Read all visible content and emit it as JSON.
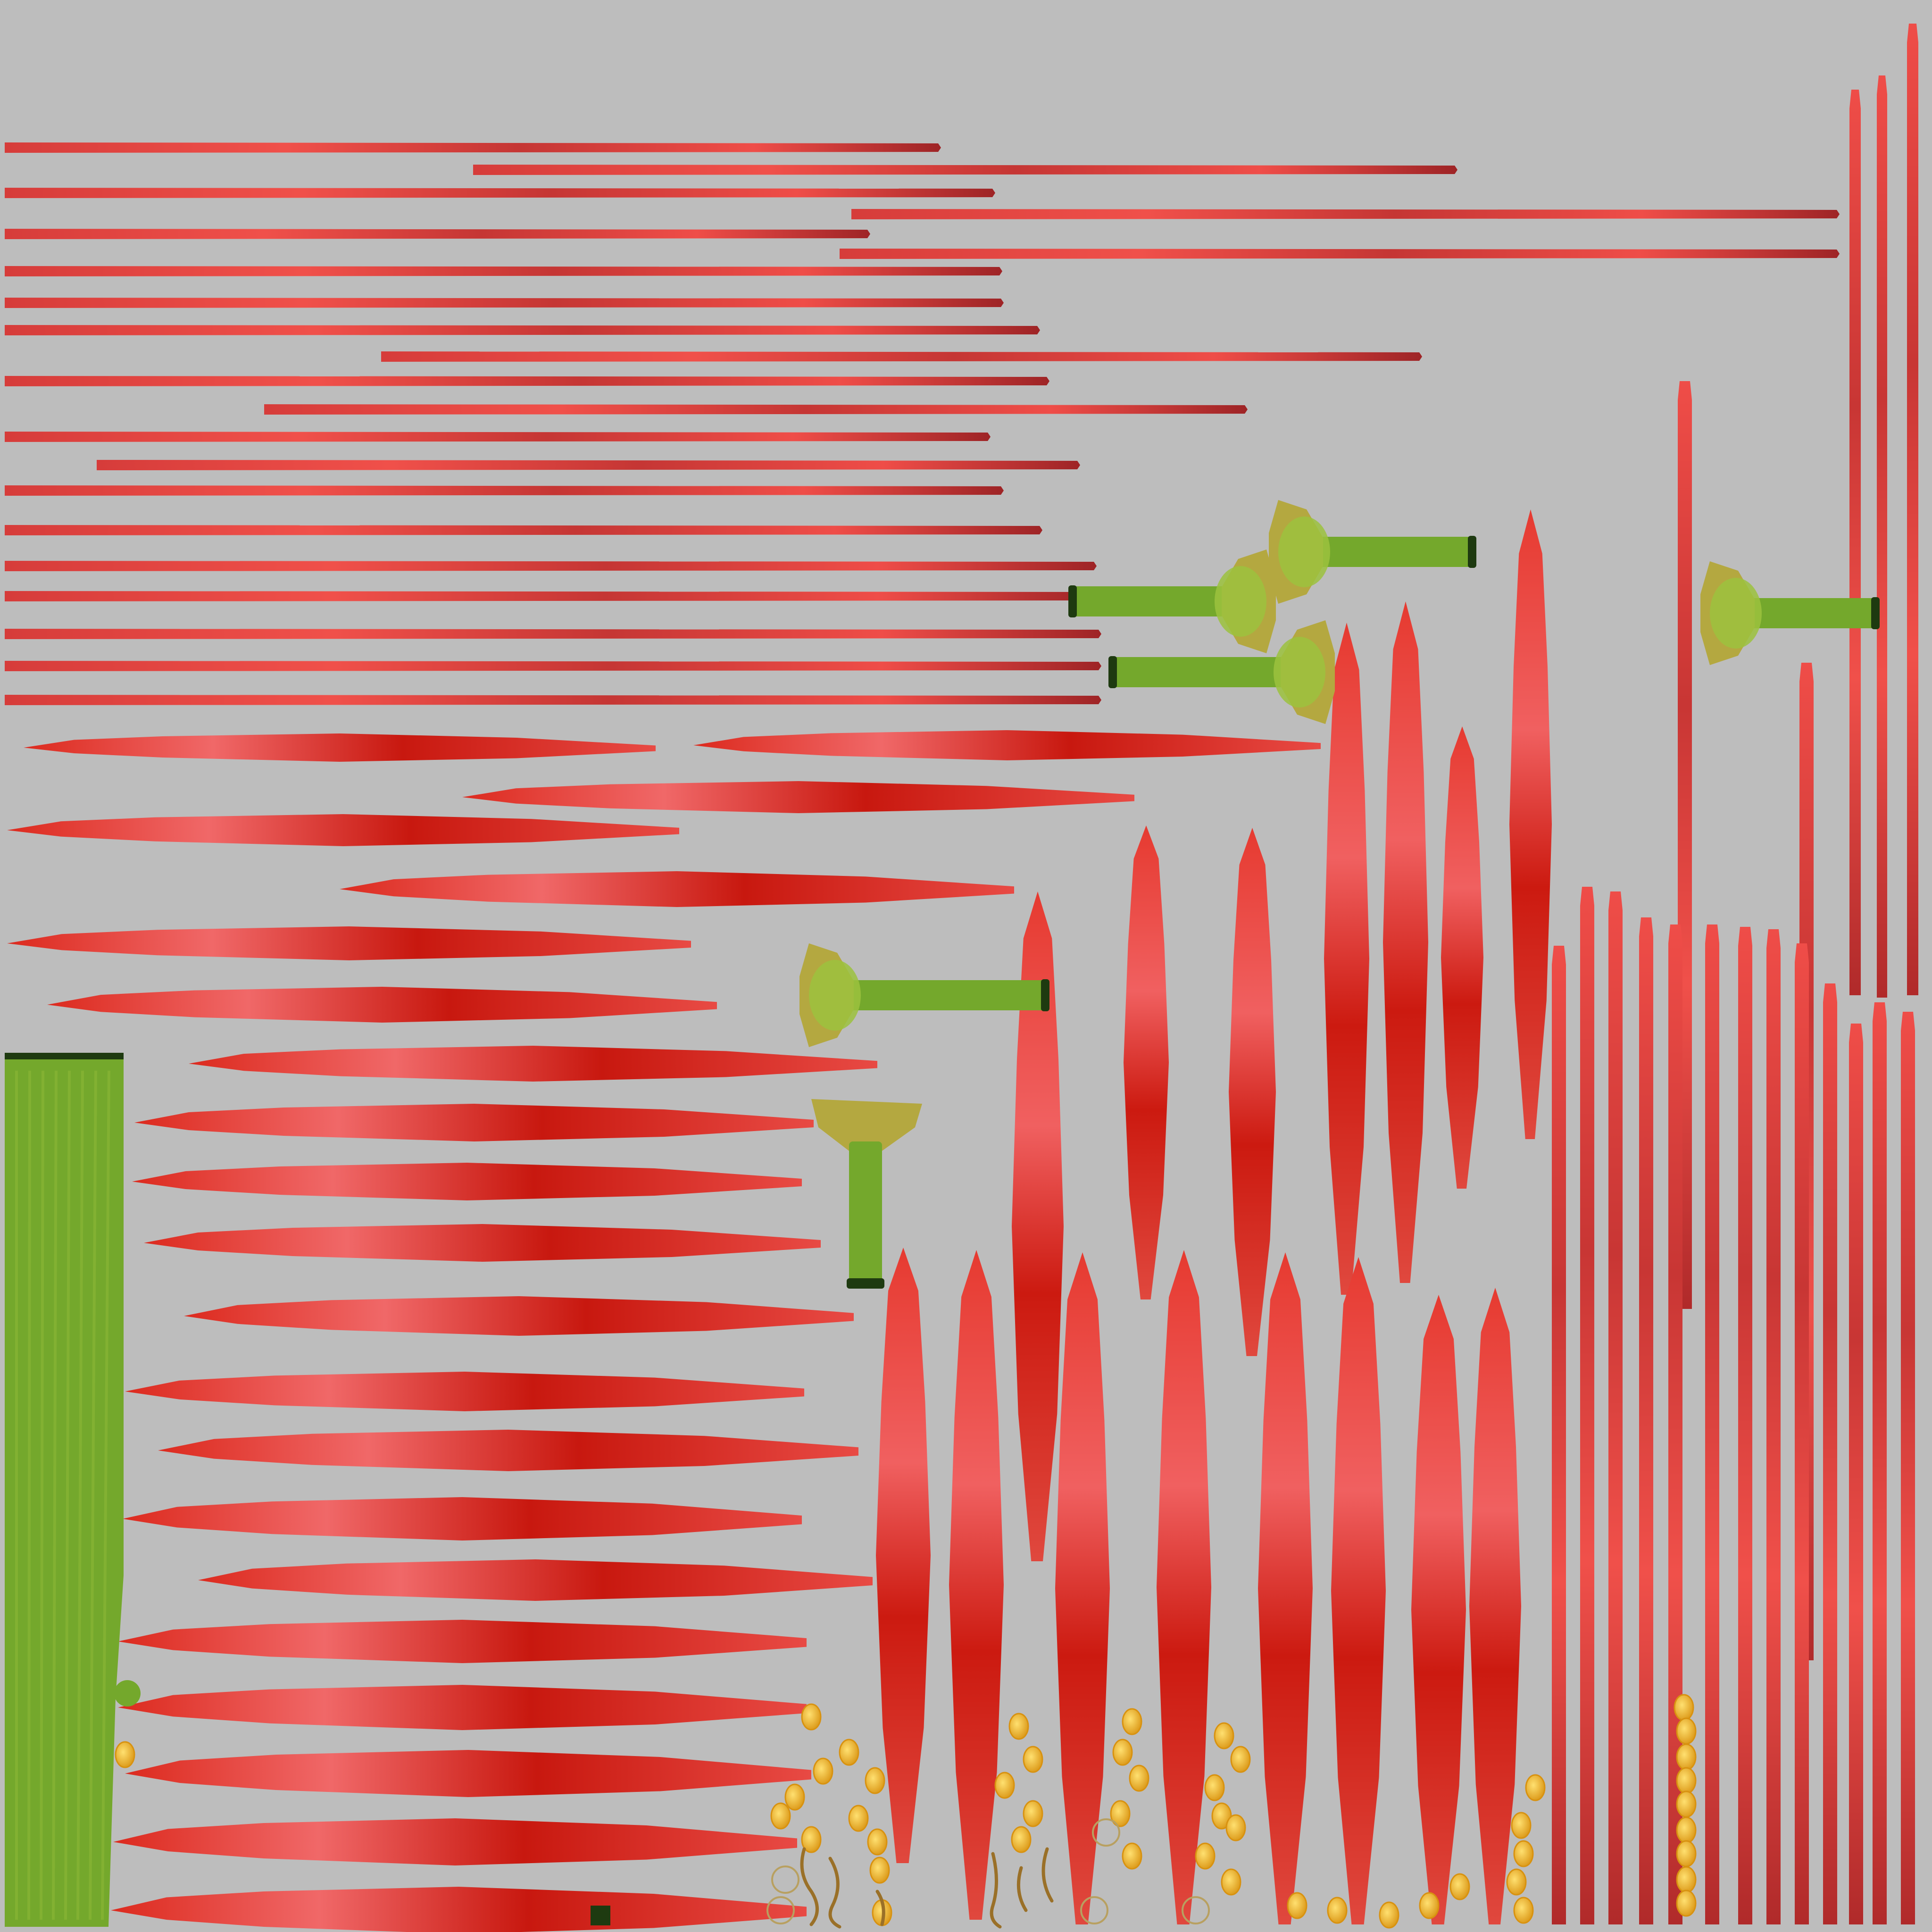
{
  "atlas": {
    "background_color": "#bdbdbd",
    "colors": {
      "strip_light": "#f0504a",
      "strip_mid": "#d63c3a",
      "strip_dark": "#9e2426",
      "petal_light": "#f06868",
      "petal_mid": "#dc2a1e",
      "petal_dark": "#b8150f",
      "stem_green": "#74a82c",
      "stem_light": "#9cc23e",
      "stem_dark": "#1e3a10",
      "calyx_yellow": "#b4a840",
      "pollen_light": "#ffe070",
      "pollen_dark": "#d89210",
      "filament": "#9a7028"
    },
    "components": [
      "horizontal-ribbon-strips",
      "vertical-ribbon-strips",
      "horizontal-petal-shapes",
      "vertical-petal-shapes",
      "stamen-stems",
      "green-stem-panel",
      "pollen-grains",
      "filament-curls"
    ]
  }
}
